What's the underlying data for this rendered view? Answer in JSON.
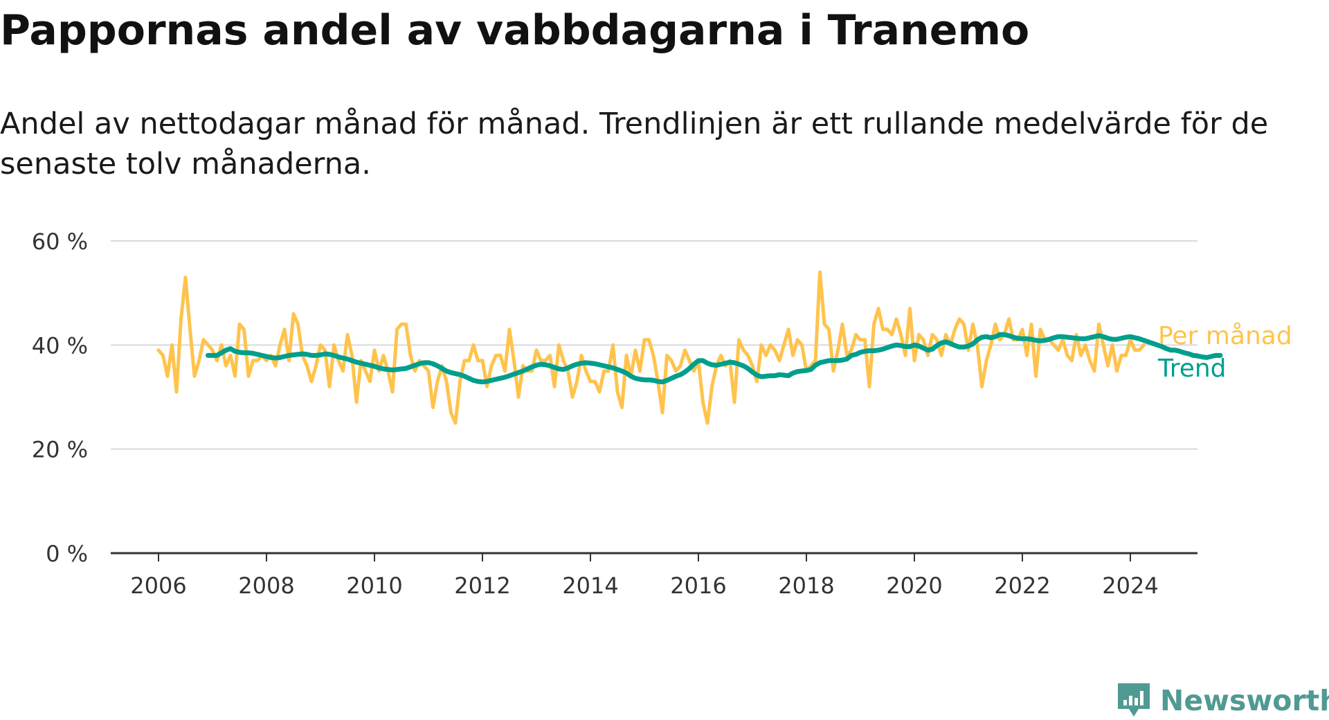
{
  "title": "Pappornas andel av vabbdagarna i Tranemo",
  "subtitle": "Andel av nettodagar månad för månad. Trendlinjen är ett rullande medelvärde för de senaste tolv månaderna.",
  "brand": {
    "name": "Newsworthy",
    "color": "#4f9a92",
    "icon": "newsworthy-bar-chart-icon"
  },
  "chart_data": {
    "type": "line",
    "x_start": "2006-01",
    "x_step": "1 month",
    "x_ticks": [
      "2006",
      "2008",
      "2010",
      "2012",
      "2014",
      "2016",
      "2018",
      "2020",
      "2022",
      "2024"
    ],
    "y_ticks": [
      "0 %",
      "20 %",
      "40 %",
      "60 %"
    ],
    "ylim": [
      0,
      60
    ],
    "grid": true,
    "legend_placement": "right end of lines",
    "series": [
      {
        "name": "Per månad",
        "color": "#ffc34d",
        "values": [
          39,
          38,
          34,
          40,
          31,
          45,
          53,
          43,
          34,
          37,
          41,
          40,
          39,
          37,
          40,
          36,
          38,
          34,
          44,
          43,
          34,
          37,
          37,
          38,
          37,
          38,
          36,
          40,
          43,
          37,
          46,
          44,
          38,
          36,
          33,
          36,
          40,
          39,
          32,
          40,
          37,
          35,
          42,
          38,
          29,
          37,
          35,
          33,
          39,
          35,
          38,
          35,
          31,
          43,
          44,
          44,
          38,
          35,
          37,
          36,
          35,
          28,
          33,
          36,
          33,
          27,
          25,
          33,
          37,
          37,
          40,
          37,
          37,
          32,
          36,
          38,
          38,
          35,
          43,
          37,
          30,
          36,
          35,
          35,
          39,
          37,
          37,
          38,
          32,
          40,
          37,
          35,
          30,
          33,
          38,
          35,
          33,
          33,
          31,
          35,
          35,
          40,
          31,
          28,
          38,
          34,
          39,
          35,
          41,
          41,
          38,
          33,
          27,
          38,
          37,
          35,
          36,
          39,
          37,
          35,
          37,
          29,
          25,
          32,
          36,
          38,
          36,
          37,
          29,
          41,
          39,
          38,
          36,
          33,
          40,
          38,
          40,
          39,
          37,
          40,
          43,
          38,
          41,
          40,
          35,
          36,
          37,
          54,
          44,
          43,
          35,
          39,
          44,
          38,
          39,
          42,
          41,
          41,
          32,
          44,
          47,
          43,
          43,
          42,
          45,
          42,
          38,
          47,
          37,
          42,
          41,
          38,
          42,
          41,
          38,
          42,
          40,
          43,
          45,
          44,
          39,
          44,
          40,
          32,
          37,
          40,
          44,
          41,
          42,
          45,
          41,
          41,
          43,
          38,
          44,
          34,
          43,
          41,
          41,
          40,
          39,
          41,
          38,
          37,
          42,
          38,
          40,
          37,
          35,
          44,
          40,
          36,
          40,
          35,
          38,
          38,
          41,
          39,
          39,
          40
        ],
        "label_value": 40
      },
      {
        "name": "Trend",
        "color": "#009e8c",
        "start_index": 11,
        "values": [
          38,
          38,
          38,
          38.5,
          39,
          39.3,
          38.8,
          38.6,
          38.5,
          38.5,
          38.4,
          38.2,
          38,
          37.8,
          37.6,
          37.5,
          37.6,
          37.8,
          38,
          38.1,
          38.2,
          38.3,
          38.2,
          38,
          38,
          38.1,
          38.3,
          38.2,
          38,
          37.7,
          37.5,
          37.3,
          37,
          36.7,
          36.5,
          36.3,
          36.1,
          35.9,
          35.6,
          35.4,
          35.3,
          35.2,
          35.3,
          35.4,
          35.5,
          35.8,
          36.1,
          36.4,
          36.6,
          36.6,
          36.4,
          36,
          35.5,
          35,
          34.7,
          34.5,
          34.3,
          34,
          33.6,
          33.2,
          33,
          32.9,
          33,
          33.2,
          33.4,
          33.6,
          33.8,
          34.1,
          34.4,
          34.7,
          35,
          35.4,
          35.8,
          36.1,
          36.3,
          36.2,
          36,
          35.7,
          35.4,
          35.3,
          35.6,
          36,
          36.3,
          36.5,
          36.6,
          36.5,
          36.4,
          36.2,
          36,
          35.8,
          35.6,
          35.3,
          35,
          34.6,
          34,
          33.6,
          33.4,
          33.3,
          33.3,
          33.2,
          33,
          32.9,
          33.2,
          33.6,
          34,
          34.3,
          34.8,
          35.5,
          36.3,
          37,
          37,
          36.5,
          36.2,
          36.1,
          36.3,
          36.5,
          36.7,
          36.6,
          36.3,
          36,
          35.5,
          34.8,
          34.2,
          33.9,
          34,
          34.1,
          34.1,
          34.3,
          34.2,
          34.1,
          34.6,
          34.9,
          35,
          35.1,
          35.3,
          36.1,
          36.6,
          36.8,
          37,
          37,
          37,
          37.1,
          37.3,
          38,
          38.2,
          38.6,
          38.8,
          38.9,
          38.9,
          39,
          39.2,
          39.5,
          39.8,
          40,
          39.9,
          39.7,
          39.7,
          40,
          39.8,
          39.4,
          39,
          39.2,
          39.9,
          40.4,
          40.6,
          40.3,
          39.9,
          39.6,
          39.6,
          39.8,
          40.2,
          41,
          41.5,
          41.6,
          41.4,
          41.6,
          42,
          42,
          41.8,
          41.5,
          41.3,
          41.2,
          41.2,
          41.1,
          40.9,
          40.8,
          40.9,
          41.1,
          41.4,
          41.6,
          41.6,
          41.5,
          41.4,
          41.3,
          41.2,
          41.2,
          41.4,
          41.6,
          41.8,
          41.6,
          41.3,
          41.1,
          41.1,
          41.3,
          41.5,
          41.6,
          41.4,
          41.2,
          40.9,
          40.6,
          40.3,
          40,
          39.7,
          39.3,
          39,
          39,
          38.8,
          38.5,
          38.3,
          38,
          37.9,
          37.7,
          37.6,
          37.8,
          38,
          38
        ]
      }
    ]
  }
}
